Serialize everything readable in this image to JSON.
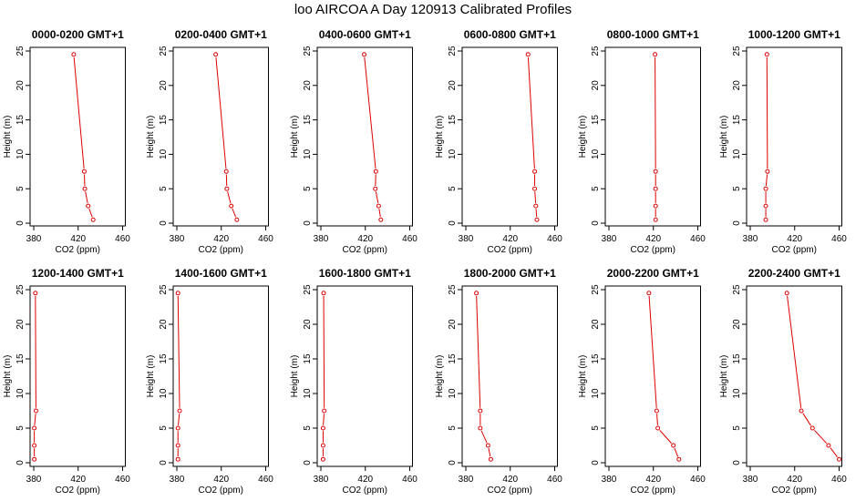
{
  "title": "loo AIRCOA A  Day 120913  Calibrated Profiles",
  "chart_data": [
    {
      "type": "line",
      "title": "0000-0200 GMT+1",
      "xlabel": "CO2 (ppm)",
      "ylabel": "Height (m)",
      "xlim": [
        380,
        460
      ],
      "ylim": [
        0,
        25
      ],
      "xticks": [
        380,
        420,
        460
      ],
      "yticks": [
        0,
        5,
        10,
        15,
        20,
        25
      ],
      "series": [
        {
          "color": "#dd0000",
          "x": [
            433.5,
            429,
            426,
            425.5,
            416
          ],
          "y": [
            0.5,
            2.5,
            5,
            7.5,
            24.5
          ]
        }
      ]
    },
    {
      "type": "line",
      "title": "0200-0400 GMT+1",
      "xlabel": "CO2 (ppm)",
      "ylabel": "Height (m)",
      "xlim": [
        380,
        460
      ],
      "ylim": [
        0,
        25
      ],
      "xticks": [
        380,
        420,
        460
      ],
      "yticks": [
        0,
        5,
        10,
        15,
        20,
        25
      ],
      "series": [
        {
          "color": "#dd0000",
          "x": [
            434,
            429,
            425,
            424.5,
            415
          ],
          "y": [
            0.5,
            2.5,
            5,
            7.5,
            24.5
          ]
        }
      ]
    },
    {
      "type": "line",
      "title": "0400-0600 GMT+1",
      "xlabel": "CO2 (ppm)",
      "ylabel": "Height (m)",
      "xlim": [
        380,
        460
      ],
      "ylim": [
        0,
        25
      ],
      "xticks": [
        380,
        420,
        460
      ],
      "yticks": [
        0,
        5,
        10,
        15,
        20,
        25
      ],
      "series": [
        {
          "color": "#dd0000",
          "x": [
            434,
            432,
            429,
            429.5,
            419
          ],
          "y": [
            0.5,
            2.5,
            5,
            7.5,
            24.5
          ]
        }
      ]
    },
    {
      "type": "line",
      "title": "0600-0800 GMT+1",
      "xlabel": "CO2 (ppm)",
      "ylabel": "Height (m)",
      "xlim": [
        380,
        460
      ],
      "ylim": [
        0,
        25
      ],
      "xticks": [
        380,
        420,
        460
      ],
      "yticks": [
        0,
        5,
        10,
        15,
        20,
        25
      ],
      "series": [
        {
          "color": "#dd0000",
          "x": [
            444,
            443,
            442,
            442,
            436
          ],
          "y": [
            0.5,
            2.5,
            5,
            7.5,
            24.5
          ]
        }
      ]
    },
    {
      "type": "line",
      "title": "0800-1000 GMT+1",
      "xlabel": "CO2 (ppm)",
      "ylabel": "Height (m)",
      "xlim": [
        380,
        460
      ],
      "ylim": [
        0,
        25
      ],
      "xticks": [
        380,
        420,
        460
      ],
      "yticks": [
        0,
        5,
        10,
        15,
        20,
        25
      ],
      "series": [
        {
          "color": "#dd0000",
          "x": [
            422,
            422,
            422,
            422,
            421.5
          ],
          "y": [
            0.5,
            2.5,
            5,
            7.5,
            24.5
          ]
        }
      ]
    },
    {
      "type": "line",
      "title": "1000-1200 GMT+1",
      "xlabel": "CO2 (ppm)",
      "ylabel": "Height (m)",
      "xlim": [
        380,
        460
      ],
      "ylim": [
        0,
        25
      ],
      "xticks": [
        380,
        420,
        460
      ],
      "yticks": [
        0,
        5,
        10,
        15,
        20,
        25
      ],
      "series": [
        {
          "color": "#dd0000",
          "x": [
            394,
            394,
            394,
            395.5,
            395
          ],
          "y": [
            0.5,
            2.5,
            5,
            7.5,
            24.5
          ]
        }
      ]
    },
    {
      "type": "line",
      "title": "1200-1400 GMT+1",
      "xlabel": "CO2 (ppm)",
      "ylabel": "Height (m)",
      "xlim": [
        380,
        460
      ],
      "ylim": [
        0,
        25
      ],
      "xticks": [
        380,
        420,
        460
      ],
      "yticks": [
        0,
        5,
        10,
        15,
        20,
        25
      ],
      "series": [
        {
          "color": "#dd0000",
          "x": [
            380.5,
            380.5,
            380.5,
            382,
            381.5
          ],
          "y": [
            0.5,
            2.5,
            5,
            7.5,
            24.5
          ]
        }
      ]
    },
    {
      "type": "line",
      "title": "1400-1600 GMT+1",
      "xlabel": "CO2 (ppm)",
      "ylabel": "Height (m)",
      "xlim": [
        380,
        460
      ],
      "ylim": [
        0,
        25
      ],
      "xticks": [
        380,
        420,
        460
      ],
      "yticks": [
        0,
        5,
        10,
        15,
        20,
        25
      ],
      "series": [
        {
          "color": "#dd0000",
          "x": [
            381,
            381,
            381,
            382.5,
            381
          ],
          "y": [
            0.5,
            2.5,
            5,
            7.5,
            24.5
          ]
        }
      ]
    },
    {
      "type": "line",
      "title": "1600-1800 GMT+1",
      "xlabel": "CO2 (ppm)",
      "ylabel": "Height (m)",
      "xlim": [
        380,
        460
      ],
      "ylim": [
        0,
        25
      ],
      "xticks": [
        380,
        420,
        460
      ],
      "yticks": [
        0,
        5,
        10,
        15,
        20,
        25
      ],
      "series": [
        {
          "color": "#dd0000",
          "x": [
            382,
            382,
            382,
            383,
            382.5
          ],
          "y": [
            0.5,
            2.5,
            5,
            7.5,
            24.5
          ]
        }
      ]
    },
    {
      "type": "line",
      "title": "1800-2000 GMT+1",
      "xlabel": "CO2 (ppm)",
      "ylabel": "Height (m)",
      "xlim": [
        380,
        460
      ],
      "ylim": [
        0,
        25
      ],
      "xticks": [
        380,
        420,
        460
      ],
      "yticks": [
        0,
        5,
        10,
        15,
        20,
        25
      ],
      "series": [
        {
          "color": "#dd0000",
          "x": [
            402.5,
            400,
            393,
            393,
            389.5
          ],
          "y": [
            0.5,
            2.5,
            5,
            7.5,
            24.5
          ]
        }
      ]
    },
    {
      "type": "line",
      "title": "2000-2200 GMT+1",
      "xlabel": "CO2 (ppm)",
      "ylabel": "Height (m)",
      "xlim": [
        380,
        460
      ],
      "ylim": [
        0,
        25
      ],
      "xticks": [
        380,
        420,
        460
      ],
      "yticks": [
        0,
        5,
        10,
        15,
        20,
        25
      ],
      "series": [
        {
          "color": "#dd0000",
          "x": [
            443,
            438,
            424,
            423,
            416
          ],
          "y": [
            0.5,
            2.5,
            5,
            7.5,
            24.5
          ]
        }
      ]
    },
    {
      "type": "line",
      "title": "2200-2400 GMT+1",
      "xlabel": "CO2 (ppm)",
      "ylabel": "Height (m)",
      "xlim": [
        380,
        460
      ],
      "ylim": [
        0,
        25
      ],
      "xticks": [
        380,
        420,
        460
      ],
      "yticks": [
        0,
        5,
        10,
        15,
        20,
        25
      ],
      "series": [
        {
          "color": "#dd0000",
          "x": [
            460,
            450.5,
            436,
            426,
            413
          ],
          "y": [
            0.5,
            2.5,
            5,
            7.5,
            24.5
          ]
        }
      ]
    }
  ]
}
